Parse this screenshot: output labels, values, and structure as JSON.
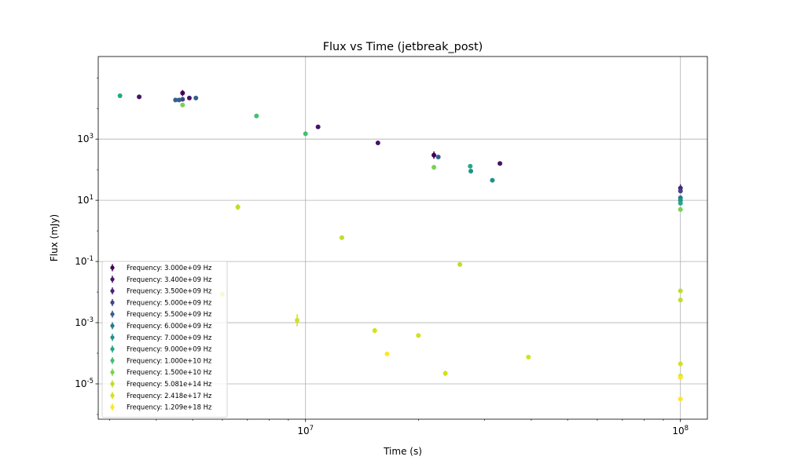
{
  "chart_data": {
    "type": "scatter",
    "title": "Flux vs Time (jetbreak_post)",
    "xlabel": "Time (s)",
    "ylabel": "Flux (mJy)",
    "xscale": "log",
    "yscale": "log",
    "xlim": [
      2800000,
      118000000
    ],
    "ylim": [
      7e-07,
      500000
    ],
    "x_ticks": [
      {
        "value": 10000000,
        "label": "10^7"
      },
      {
        "value": 100000000,
        "label": "10^8"
      }
    ],
    "y_ticks": [
      {
        "value": 1e-05,
        "label": "10^-5"
      },
      {
        "value": 0.001,
        "label": "10^-3"
      },
      {
        "value": 0.1,
        "label": "10^-1"
      },
      {
        "value": 10,
        "label": "10^1"
      },
      {
        "value": 1000,
        "label": "10^3"
      }
    ],
    "grid": true,
    "legend_position": "lower-left",
    "series": [
      {
        "name": "Frequency: 3.000e+09 Hz",
        "color": "#440154",
        "points": [
          {
            "x": 4700000,
            "y": 32000,
            "err": 0.1
          },
          {
            "x": 22000000,
            "y": 300,
            "err": 0.12
          }
        ]
      },
      {
        "name": "Frequency: 3.400e+09 Hz",
        "color": "#471365",
        "points": [
          {
            "x": 3600000,
            "y": 24000,
            "err": 0
          },
          {
            "x": 4900000,
            "y": 22000,
            "err": 0.05
          },
          {
            "x": 10800000,
            "y": 2500,
            "err": 0
          },
          {
            "x": 15600000,
            "y": 750,
            "err": 0
          },
          {
            "x": 33000000,
            "y": 160,
            "err": 0
          }
        ]
      },
      {
        "name": "Frequency: 3.500e+09 Hz",
        "color": "#482475",
        "points": [
          {
            "x": 100000000,
            "y": 25,
            "err": 0.12
          }
        ]
      },
      {
        "name": "Frequency: 5.000e+09 Hz",
        "color": "#414487",
        "points": [
          {
            "x": 4700000,
            "y": 20000,
            "err": 0.06
          },
          {
            "x": 100000000,
            "y": 20,
            "err": 0.06
          }
        ]
      },
      {
        "name": "Frequency: 5.500e+09 Hz",
        "color": "#355f8d",
        "points": [
          {
            "x": 4500000,
            "y": 19000,
            "err": 0
          },
          {
            "x": 4600000,
            "y": 19000,
            "err": 0.04
          },
          {
            "x": 5100000,
            "y": 22000,
            "err": 0.04
          },
          {
            "x": 22600000,
            "y": 260,
            "err": 0.05
          }
        ]
      },
      {
        "name": "Frequency: 6.000e+09 Hz",
        "color": "#2a788e",
        "points": [
          {
            "x": 100000000,
            "y": 12,
            "err": 0.08
          }
        ]
      },
      {
        "name": "Frequency: 7.000e+09 Hz",
        "color": "#21918c",
        "points": [
          {
            "x": 27600000,
            "y": 90,
            "err": 0.04
          },
          {
            "x": 31500000,
            "y": 45,
            "err": 0.06
          },
          {
            "x": 100000000,
            "y": 10,
            "err": 0.06
          }
        ]
      },
      {
        "name": "Frequency: 9.000e+09 Hz",
        "color": "#22a884",
        "points": [
          {
            "x": 3200000,
            "y": 26000,
            "err": 0.06
          },
          {
            "x": 27500000,
            "y": 130,
            "err": 0.05
          },
          {
            "x": 100000000,
            "y": 8,
            "err": 0.05
          }
        ]
      },
      {
        "name": "Frequency: 1.000e+10 Hz",
        "color": "#44bf70",
        "points": [
          {
            "x": 7400000,
            "y": 5700,
            "err": 0.07
          },
          {
            "x": 10000000,
            "y": 1500,
            "err": 0.05
          }
        ]
      },
      {
        "name": "Frequency: 1.500e+10 Hz",
        "color": "#7ad151",
        "points": [
          {
            "x": 4700000,
            "y": 13000,
            "err": 0.06
          },
          {
            "x": 22000000,
            "y": 120,
            "err": 0.08
          },
          {
            "x": 100000000,
            "y": 5,
            "err": 0.07
          }
        ]
      },
      {
        "name": "Frequency: 5.081e+14 Hz",
        "color": "#bddf26",
        "points": [
          {
            "x": 6600000,
            "y": 6,
            "err": 0.1
          },
          {
            "x": 12500000,
            "y": 0.6,
            "err": 0.06
          },
          {
            "x": 25800000,
            "y": 0.08,
            "err": 0.07
          },
          {
            "x": 100000000,
            "y": 0.011,
            "err": 0.06
          },
          {
            "x": 100000000,
            "y": 0.0055,
            "err": 0.04
          }
        ]
      },
      {
        "name": "Frequency: 2.418e+17 Hz",
        "color": "#d2e21b",
        "points": [
          {
            "x": 6000000,
            "y": 0.0085,
            "err": 0.06
          },
          {
            "x": 9500000,
            "y": 0.0012,
            "err": 0.2
          },
          {
            "x": 15300000,
            "y": 0.00055,
            "err": 0.08
          },
          {
            "x": 20000000,
            "y": 0.00038,
            "err": 0.04
          },
          {
            "x": 23600000,
            "y": 2.2e-05,
            "err": 0.09
          },
          {
            "x": 39300000,
            "y": 7.5e-05,
            "err": 0.06
          },
          {
            "x": 100000000,
            "y": 4.5e-05,
            "err": 0.08
          },
          {
            "x": 100000000,
            "y": 1.8e-05,
            "err": 0.06
          }
        ]
      },
      {
        "name": "Frequency: 1.209e+18 Hz",
        "color": "#fde725",
        "points": [
          {
            "x": 16500000,
            "y": 9.5e-05,
            "err": 0
          },
          {
            "x": 100000000,
            "y": 3.2e-06,
            "err": 0.07
          },
          {
            "x": 100000000,
            "y": 1.6e-05,
            "err": 0
          }
        ]
      }
    ]
  }
}
